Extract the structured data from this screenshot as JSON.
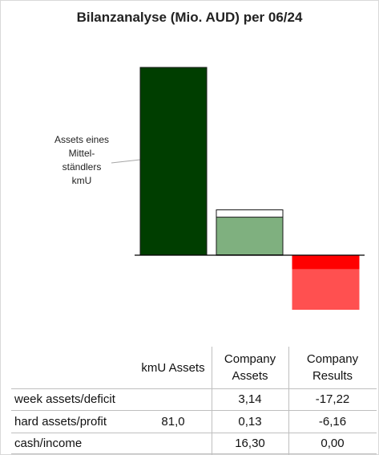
{
  "chart_data": {
    "type": "bar",
    "title": "Bilanzanalyse  (Mio. AUD) per 06/24",
    "annotation": "Assets eines\nMittel-\nständlers\nkmU",
    "zero_baseline": true,
    "grid": false,
    "bars": [
      {
        "category": "kmU Assets",
        "segments": [
          {
            "label": "hard assets/profit",
            "value": 81.0,
            "color": "#003e00",
            "outline": "#1a1a1a"
          }
        ]
      },
      {
        "category": "Company Assets",
        "segments": [
          {
            "label": "hard assets/profit",
            "value": 0.13,
            "color": "#7fb07f",
            "outline": "#1a1a1a"
          },
          {
            "label": "cash/income",
            "value": 16.3,
            "color": "#7fb07f",
            "outline": "#1a1a1a"
          },
          {
            "label": "week assets/deficit",
            "value": 3.14,
            "color": "#ffffff",
            "outline": "#1a1a1a"
          }
        ]
      },
      {
        "category": "Company Results",
        "segments": [
          {
            "label": "hard assets/profit",
            "value": -6.16,
            "color": "#ff0000",
            "outline": "#ff0000"
          },
          {
            "label": "week assets/deficit",
            "value": -17.22,
            "color": "#ff5050",
            "outline": "#ff5050"
          }
        ]
      }
    ]
  },
  "table": {
    "columns": [
      "kmU Assets",
      "Company\nAssets",
      "Company\nResults"
    ],
    "rows": [
      {
        "label": "week assets/deficit",
        "values": [
          "",
          "3,14",
          "-17,22"
        ]
      },
      {
        "label": "hard assets/profit",
        "values": [
          "81,0",
          "0,13",
          "-6,16"
        ]
      },
      {
        "label": "cash/income",
        "values": [
          "",
          "16,30",
          "0,00"
        ]
      }
    ]
  }
}
